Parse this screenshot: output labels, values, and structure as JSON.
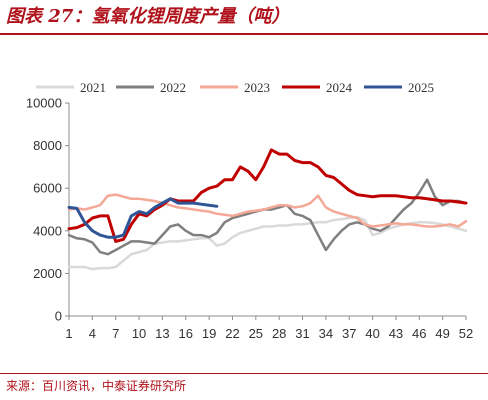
{
  "title": "图表 27：氢氧化锂周度产量（吨）",
  "source": "来源：百川资讯，中泰证券研究所",
  "chart_data": {
    "type": "line",
    "xlabel": "",
    "ylabel": "",
    "x_ticks": [
      1,
      4,
      7,
      10,
      13,
      16,
      19,
      22,
      25,
      28,
      31,
      34,
      37,
      40,
      43,
      46,
      49,
      52
    ],
    "y_ticks": [
      0,
      2000,
      4000,
      6000,
      8000,
      10000
    ],
    "xlim": [
      1,
      52
    ],
    "ylim": [
      0,
      10000
    ],
    "grid": false,
    "legend_position": "top",
    "series": [
      {
        "name": "2021",
        "color": "#d9d9d9",
        "width": 2.5,
        "x": [
          1,
          2,
          3,
          4,
          5,
          6,
          7,
          8,
          9,
          10,
          11,
          12,
          13,
          14,
          15,
          16,
          17,
          18,
          19,
          20,
          21,
          22,
          23,
          24,
          25,
          26,
          27,
          28,
          29,
          30,
          31,
          32,
          33,
          34,
          35,
          36,
          37,
          38,
          39,
          40,
          41,
          42,
          43,
          44,
          45,
          46,
          47,
          48,
          49,
          50,
          51,
          52
        ],
        "values": [
          2300,
          2300,
          2300,
          2200,
          2250,
          2250,
          2300,
          2600,
          2900,
          3000,
          3100,
          3400,
          3450,
          3500,
          3500,
          3550,
          3600,
          3650,
          3650,
          3300,
          3400,
          3700,
          3900,
          4000,
          4100,
          4200,
          4200,
          4250,
          4250,
          4300,
          4300,
          4350,
          4400,
          4400,
          4500,
          4550,
          4600,
          4650,
          4500,
          3800,
          3900,
          4100,
          4200,
          4300,
          4350,
          4400,
          4400,
          4350,
          4300,
          4200,
          4100,
          4000
        ]
      },
      {
        "name": "2022",
        "color": "#7f7f7f",
        "width": 2.5,
        "x": [
          1,
          2,
          3,
          4,
          5,
          6,
          7,
          8,
          9,
          10,
          11,
          12,
          13,
          14,
          15,
          16,
          17,
          18,
          19,
          20,
          21,
          22,
          23,
          24,
          25,
          26,
          27,
          28,
          29,
          30,
          31,
          32,
          33,
          34,
          35,
          36,
          37,
          38,
          39,
          40,
          41,
          42,
          43,
          44,
          45,
          46,
          47,
          48,
          49,
          50,
          51,
          52
        ],
        "values": [
          3800,
          3650,
          3600,
          3450,
          3000,
          2900,
          3100,
          3300,
          3500,
          3500,
          3450,
          3400,
          3800,
          4200,
          4300,
          4000,
          3800,
          3800,
          3700,
          3900,
          4400,
          4600,
          4700,
          4800,
          4900,
          5000,
          5000,
          5100,
          5200,
          4800,
          4700,
          4500,
          3800,
          3100,
          3600,
          4000,
          4300,
          4400,
          4300,
          4100,
          4000,
          4200,
          4600,
          5000,
          5300,
          5800,
          6400,
          5600,
          5200,
          5400,
          5400,
          5300
        ]
      },
      {
        "name": "2023",
        "color": "#f4a896",
        "width": 2.5,
        "x": [
          1,
          2,
          3,
          4,
          5,
          6,
          7,
          8,
          9,
          10,
          11,
          12,
          13,
          14,
          15,
          16,
          17,
          18,
          19,
          20,
          21,
          22,
          23,
          24,
          25,
          26,
          27,
          28,
          29,
          30,
          31,
          32,
          33,
          34,
          35,
          36,
          37,
          38,
          39,
          40,
          41,
          42,
          43,
          44,
          45,
          46,
          47,
          48,
          49,
          50,
          51,
          52
        ],
        "values": [
          5000,
          5050,
          5000,
          5100,
          5200,
          5650,
          5700,
          5600,
          5500,
          5500,
          5450,
          5400,
          5300,
          5200,
          5100,
          5050,
          5000,
          4950,
          4900,
          4800,
          4750,
          4700,
          4800,
          4900,
          4950,
          5000,
          5100,
          5200,
          5200,
          5100,
          5150,
          5300,
          5650,
          5100,
          4900,
          4800,
          4700,
          4600,
          4300,
          4200,
          4250,
          4300,
          4350,
          4300,
          4300,
          4250,
          4200,
          4200,
          4250,
          4300,
          4200,
          4450
        ]
      },
      {
        "name": "2024",
        "color": "#c00000",
        "width": 3,
        "x": [
          1,
          2,
          3,
          4,
          5,
          6,
          7,
          8,
          9,
          10,
          11,
          12,
          13,
          14,
          15,
          16,
          17,
          18,
          19,
          20,
          21,
          22,
          23,
          24,
          25,
          26,
          27,
          28,
          29,
          30,
          31,
          32,
          33,
          34,
          35,
          36,
          37,
          38,
          39,
          40,
          41,
          42,
          43,
          44,
          45,
          46,
          47,
          48,
          49,
          50,
          51,
          52
        ],
        "values": [
          4100,
          4150,
          4300,
          4600,
          4700,
          4700,
          3500,
          3600,
          4300,
          4800,
          4700,
          5000,
          5200,
          5500,
          5400,
          5400,
          5400,
          5800,
          6000,
          6100,
          6400,
          6400,
          7000,
          6800,
          6400,
          7000,
          7800,
          7600,
          7600,
          7300,
          7200,
          7200,
          7000,
          6600,
          6500,
          6200,
          5900,
          5700,
          5650,
          5600,
          5650,
          5650,
          5650,
          5600,
          5550,
          5550,
          5500,
          5450,
          5400,
          5400,
          5350,
          5300
        ]
      },
      {
        "name": "2025",
        "color": "#2f5597",
        "width": 3,
        "x": [
          1,
          2,
          3,
          4,
          5,
          6,
          7,
          8,
          9,
          10,
          11,
          12,
          13,
          14,
          15,
          16,
          17,
          18,
          19,
          20
        ],
        "values": [
          5100,
          5050,
          4400,
          4000,
          3800,
          3700,
          3700,
          3800,
          4700,
          4900,
          4800,
          5100,
          5300,
          5500,
          5300,
          5300,
          5300,
          5250,
          5200,
          5150
        ]
      }
    ]
  }
}
